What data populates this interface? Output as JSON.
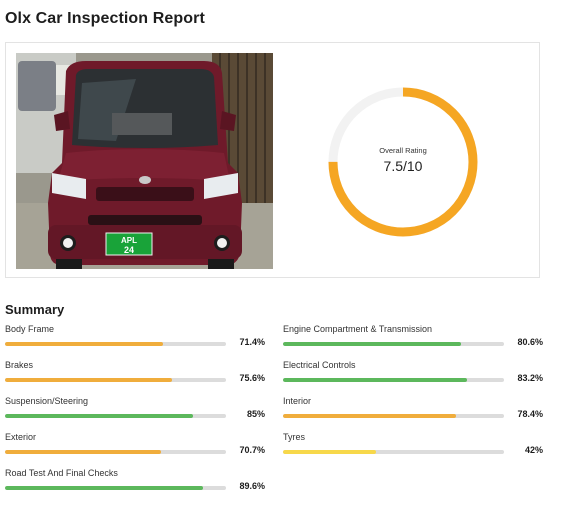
{
  "page": {
    "title": "Olx Car Inspection Report"
  },
  "vehicle_photo": {
    "plate_line1": "APL",
    "plate_line2": "24"
  },
  "rating": {
    "label": "Overall Rating",
    "value_text": "7.5/10",
    "score": 7.5,
    "max": 10,
    "color": "#f5a623",
    "track_color": "#f2f2f2"
  },
  "summary": {
    "heading": "Summary",
    "colors": {
      "orange": "#f0ad3c",
      "green": "#5cb85c",
      "yellow": "#f7d84a",
      "track": "#dcdcdc"
    },
    "items": [
      {
        "label": "Body Frame",
        "value": "71.4%",
        "percent": 71.4,
        "color": "orange"
      },
      {
        "label": "Engine Compartment & Transmission",
        "value": "80.6%",
        "percent": 80.6,
        "color": "green"
      },
      {
        "label": "Brakes",
        "value": "75.6%",
        "percent": 75.6,
        "color": "orange"
      },
      {
        "label": "Electrical Controls",
        "value": "83.2%",
        "percent": 83.2,
        "color": "green"
      },
      {
        "label": "Suspension/Steering",
        "value": "85%",
        "percent": 85,
        "color": "green"
      },
      {
        "label": "Interior",
        "value": "78.4%",
        "percent": 78.4,
        "color": "orange"
      },
      {
        "label": "Exterior",
        "value": "70.7%",
        "percent": 70.7,
        "color": "orange"
      },
      {
        "label": "Tyres",
        "value": "42%",
        "percent": 42,
        "color": "yellow"
      },
      {
        "label": "Road Test And Final Checks",
        "value": "89.6%",
        "percent": 89.6,
        "color": "green"
      }
    ]
  }
}
